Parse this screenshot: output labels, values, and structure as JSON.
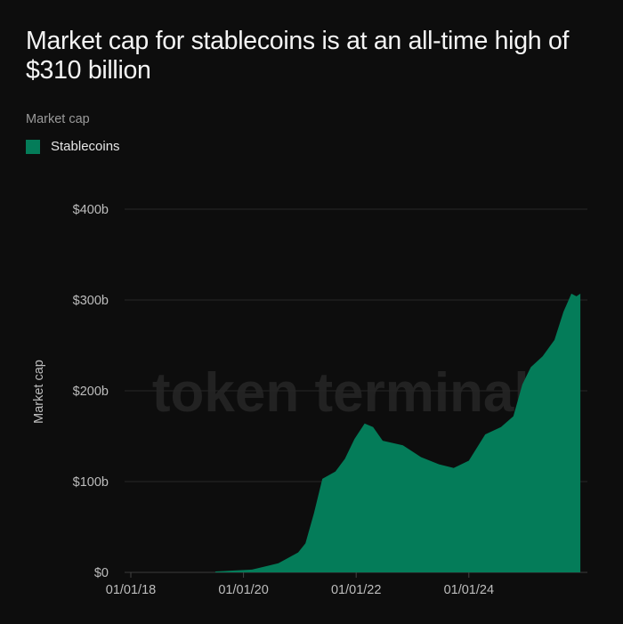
{
  "title": "Market cap for stablecoins is at an all-time high of $310 billion",
  "legend_title": "Market cap",
  "watermark": "token terminal_",
  "chart_data": {
    "type": "area",
    "title": "Market cap for stablecoins is at an all-time high of $310 billion",
    "ylabel": "Market cap",
    "xlabel": "",
    "ylim": [
      0,
      400
    ],
    "y_ticks": [
      "$0",
      "$100b",
      "$200b",
      "$300b",
      "$400b"
    ],
    "y_tick_values": [
      0,
      100,
      200,
      300,
      400
    ],
    "x_ticks": [
      "01/01/18",
      "01/01/20",
      "01/01/22",
      "01/01/24"
    ],
    "x_tick_values": [
      2018,
      2020,
      2022,
      2024
    ],
    "xlim": [
      2018,
      2026
    ],
    "grid": true,
    "legend_position": "top-left",
    "color": "#047c59",
    "series": [
      {
        "name": "Stablecoins",
        "x": [
          2019.5,
          2020.15,
          2020.62,
          2020.97,
          2021.1,
          2021.25,
          2021.4,
          2021.63,
          2021.8,
          2021.97,
          2022.15,
          2022.3,
          2022.47,
          2022.83,
          2023.15,
          2023.47,
          2023.73,
          2024.0,
          2024.29,
          2024.57,
          2024.79,
          2024.95,
          2025.1,
          2025.31,
          2025.52,
          2025.68,
          2025.82,
          2025.91,
          2025.98
        ],
        "values": [
          1,
          3,
          10,
          22,
          32,
          65,
          103,
          111,
          125,
          147,
          164,
          160,
          145,
          140,
          127,
          119,
          115,
          123,
          152,
          160,
          172,
          207,
          226,
          238,
          256,
          287,
          307,
          304,
          307
        ]
      }
    ]
  }
}
